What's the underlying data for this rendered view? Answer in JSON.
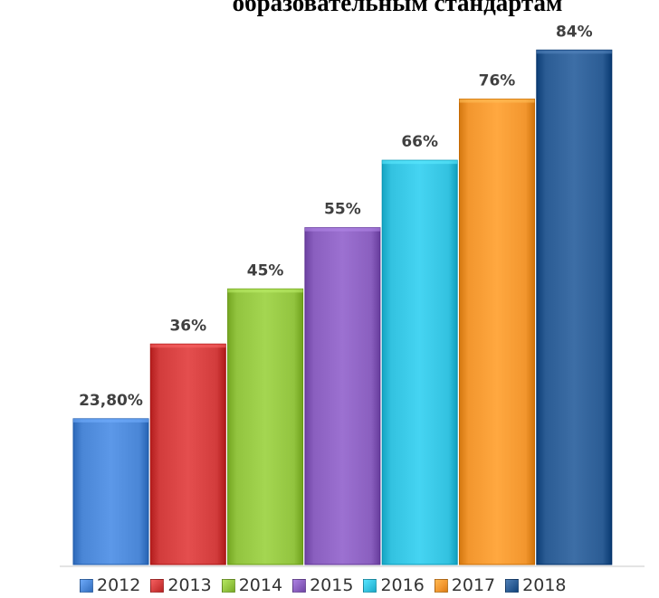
{
  "chart_data": {
    "type": "bar",
    "title": "образовательным стандартам",
    "categories": [
      "2012",
      "2013",
      "2014",
      "2015",
      "2016",
      "2017",
      "2018"
    ],
    "values": [
      23.8,
      36,
      45,
      55,
      66,
      76,
      84
    ],
    "data_labels": [
      "23,80%",
      "36%",
      "45%",
      "55%",
      "66%",
      "76%",
      "84%"
    ],
    "colors": [
      "#4a86d6",
      "#d23c3c",
      "#92c43f",
      "#8a5fbf",
      "#33c2e0",
      "#f2962e",
      "#2b5c94"
    ],
    "ylim": [
      0,
      100
    ],
    "grid": false,
    "legend_position": "bottom"
  }
}
